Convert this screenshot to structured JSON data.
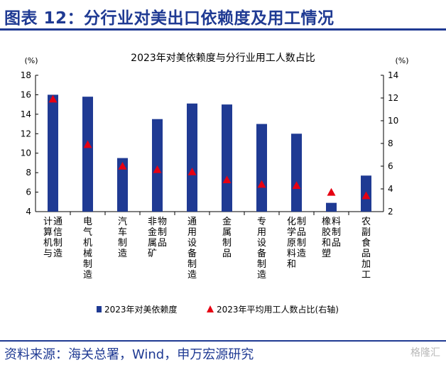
{
  "header": {
    "title": "图表 12：分行业对美出口依赖度及用工情况"
  },
  "footer": {
    "source": "资料来源：海关总署，Wind，申万宏源研究"
  },
  "watermark": {
    "text": "格隆汇"
  },
  "chart_data": {
    "type": "bar",
    "title": "2023年对美依赖度与分行业用工人数占比",
    "categories": [
      "计算机与通信制造",
      "电气机械制造",
      "汽车制造",
      "非金属矿物制品",
      "通用设备制造",
      "金属制品",
      "专用设备制造",
      "化学原料和制品制造",
      "橡胶和塑料制品",
      "农副食品加工"
    ],
    "left_axis": {
      "unit": "(%)",
      "ylim": [
        4,
        18
      ],
      "ticks": [
        4,
        6,
        8,
        10,
        12,
        14,
        16,
        18
      ]
    },
    "right_axis": {
      "unit": "(%)",
      "ylim": [
        2,
        14
      ],
      "ticks": [
        2,
        4,
        6,
        8,
        10,
        12,
        14
      ]
    },
    "series": [
      {
        "name": "2023年对美依赖度",
        "type": "bar",
        "axis": "left",
        "color": "#1f3a93",
        "values": [
          16.0,
          15.8,
          9.5,
          13.5,
          15.1,
          15.0,
          13.0,
          12.0,
          4.9,
          7.7
        ]
      },
      {
        "name": "2023年平均用工人数占比(右轴)",
        "type": "marker",
        "marker": "triangle",
        "axis": "right",
        "color": "#e60012",
        "values": [
          11.9,
          7.9,
          6.0,
          5.7,
          5.5,
          4.8,
          4.4,
          4.3,
          3.7,
          3.4
        ]
      }
    ],
    "grid": false,
    "legend_position": "bottom"
  }
}
